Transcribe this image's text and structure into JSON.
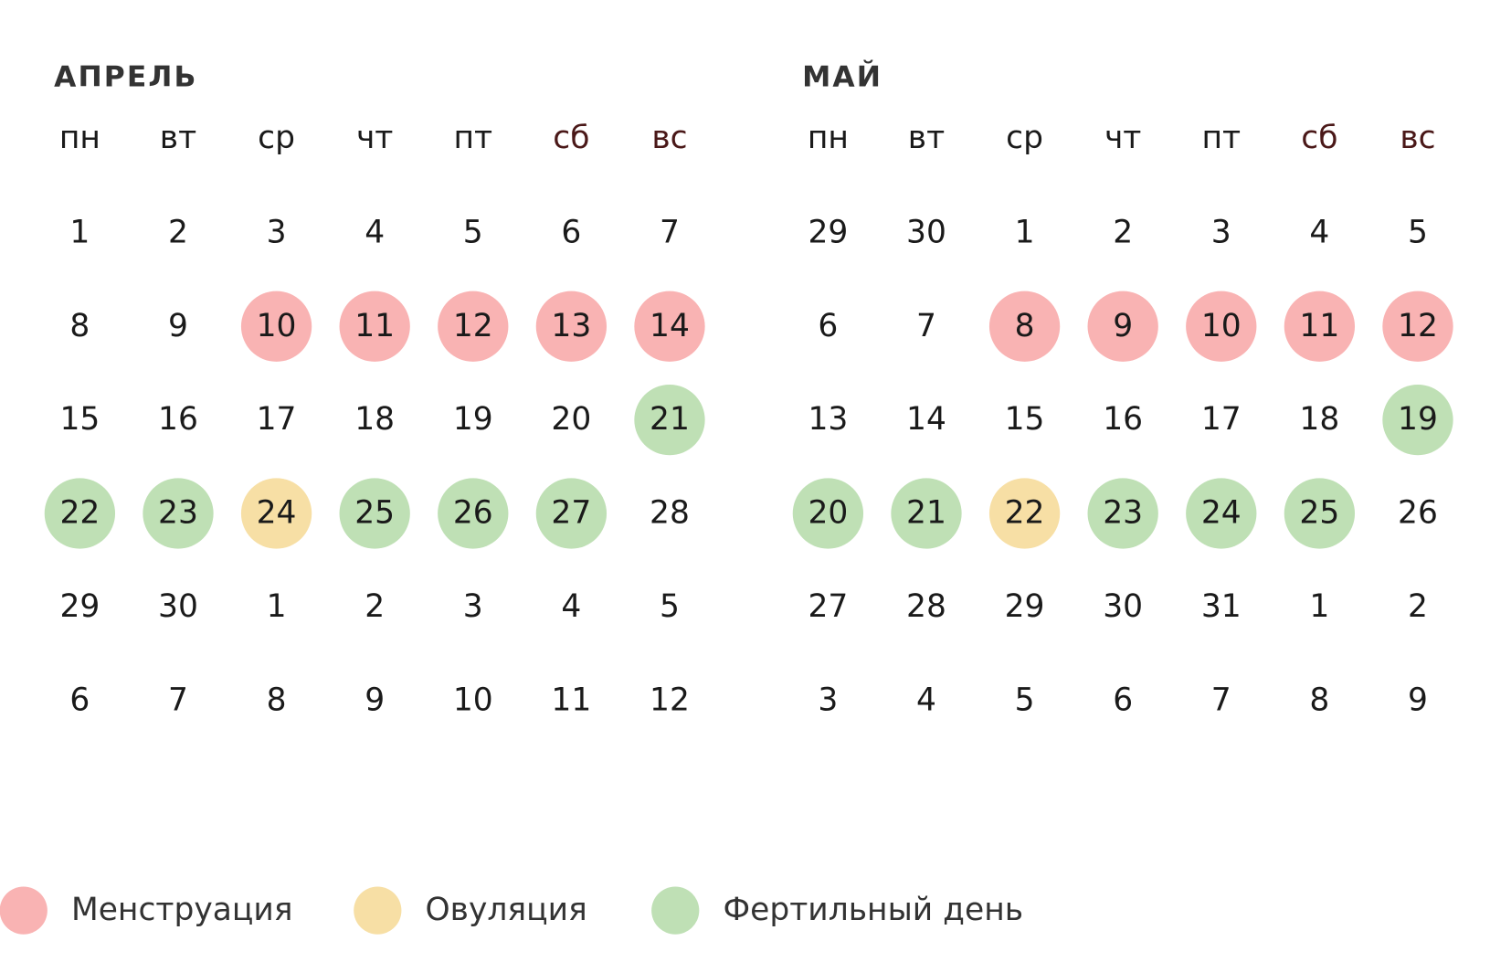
{
  "months": [
    {
      "title": "АПРЕЛЬ",
      "weekdays": [
        {
          "label": "пн",
          "color": "#1a1a1a"
        },
        {
          "label": "вт",
          "color": "#1a1a1a"
        },
        {
          "label": "ср",
          "color": "#1a1a1a"
        },
        {
          "label": "чт",
          "color": "#1a1a1a"
        },
        {
          "label": "пт",
          "color": "#1a1a1a"
        },
        {
          "label": "сб",
          "color": "#4a1818"
        },
        {
          "label": "вс",
          "color": "#4a1818"
        }
      ],
      "weeks": [
        [
          {
            "day": 1
          },
          {
            "day": 2
          },
          {
            "day": 3
          },
          {
            "day": 4
          },
          {
            "day": 5
          },
          {
            "day": 6
          },
          {
            "day": 7
          }
        ],
        [
          {
            "day": 8
          },
          {
            "day": 9
          },
          {
            "day": 10,
            "color": "#f9b3b3"
          },
          {
            "day": 11,
            "color": "#f9b3b3"
          },
          {
            "day": 12,
            "color": "#f9b3b3"
          },
          {
            "day": 13,
            "color": "#f9b3b3"
          },
          {
            "day": 14,
            "color": "#f9b3b3"
          }
        ],
        [
          {
            "day": 15
          },
          {
            "day": 16
          },
          {
            "day": 17
          },
          {
            "day": 18
          },
          {
            "day": 19
          },
          {
            "day": 20
          },
          {
            "day": 21,
            "color": "#bfe0b5"
          }
        ],
        [
          {
            "day": 22,
            "color": "#bfe0b5"
          },
          {
            "day": 23,
            "color": "#bfe0b5"
          },
          {
            "day": 24,
            "color": "#f7dfa5"
          },
          {
            "day": 25,
            "color": "#bfe0b5"
          },
          {
            "day": 26,
            "color": "#bfe0b5"
          },
          {
            "day": 27,
            "color": "#bfe0b5"
          },
          {
            "day": 28
          }
        ],
        [
          {
            "day": 29
          },
          {
            "day": 30
          },
          {
            "day": 1
          },
          {
            "day": 2
          },
          {
            "day": 3
          },
          {
            "day": 4
          },
          {
            "day": 5
          }
        ],
        [
          {
            "day": 6
          },
          {
            "day": 7
          },
          {
            "day": 8
          },
          {
            "day": 9
          },
          {
            "day": 10
          },
          {
            "day": 11
          },
          {
            "day": 12
          }
        ]
      ]
    },
    {
      "title": "МАЙ",
      "weekdays": [
        {
          "label": "пн",
          "color": "#1a1a1a"
        },
        {
          "label": "вт",
          "color": "#1a1a1a"
        },
        {
          "label": "ср",
          "color": "#1a1a1a"
        },
        {
          "label": "чт",
          "color": "#1a1a1a"
        },
        {
          "label": "пт",
          "color": "#1a1a1a"
        },
        {
          "label": "сб",
          "color": "#4a1818"
        },
        {
          "label": "вс",
          "color": "#4a1818"
        }
      ],
      "weeks": [
        [
          {
            "day": 29
          },
          {
            "day": 30
          },
          {
            "day": 1
          },
          {
            "day": 2
          },
          {
            "day": 3
          },
          {
            "day": 4
          },
          {
            "day": 5
          }
        ],
        [
          {
            "day": 6
          },
          {
            "day": 7
          },
          {
            "day": 8,
            "color": "#f9b3b3"
          },
          {
            "day": 9,
            "color": "#f9b3b3"
          },
          {
            "day": 10,
            "color": "#f9b3b3"
          },
          {
            "day": 11,
            "color": "#f9b3b3"
          },
          {
            "day": 12,
            "color": "#f9b3b3"
          }
        ],
        [
          {
            "day": 13
          },
          {
            "day": 14
          },
          {
            "day": 15
          },
          {
            "day": 16
          },
          {
            "day": 17
          },
          {
            "day": 18
          },
          {
            "day": 19,
            "color": "#bfe0b5"
          }
        ],
        [
          {
            "day": 20,
            "color": "#bfe0b5"
          },
          {
            "day": 21,
            "color": "#bfe0b5"
          },
          {
            "day": 22,
            "color": "#f7dfa5"
          },
          {
            "day": 23,
            "color": "#bfe0b5"
          },
          {
            "day": 24,
            "color": "#bfe0b5"
          },
          {
            "day": 25,
            "color": "#bfe0b5"
          },
          {
            "day": 26
          }
        ],
        [
          {
            "day": 27
          },
          {
            "day": 28
          },
          {
            "day": 29
          },
          {
            "day": 30
          },
          {
            "day": 31
          },
          {
            "day": 1
          },
          {
            "day": 2
          }
        ],
        [
          {
            "day": 3
          },
          {
            "day": 4
          },
          {
            "day": 5
          },
          {
            "day": 6
          },
          {
            "day": 7
          },
          {
            "day": 8
          },
          {
            "day": 9
          }
        ]
      ]
    }
  ],
  "legend": [
    {
      "label": "Менструация",
      "color": "#f9b3b3"
    },
    {
      "label": "Овуляция",
      "color": "#f7dfa5"
    },
    {
      "label": "Фертильный день",
      "color": "#bfe0b5"
    }
  ]
}
